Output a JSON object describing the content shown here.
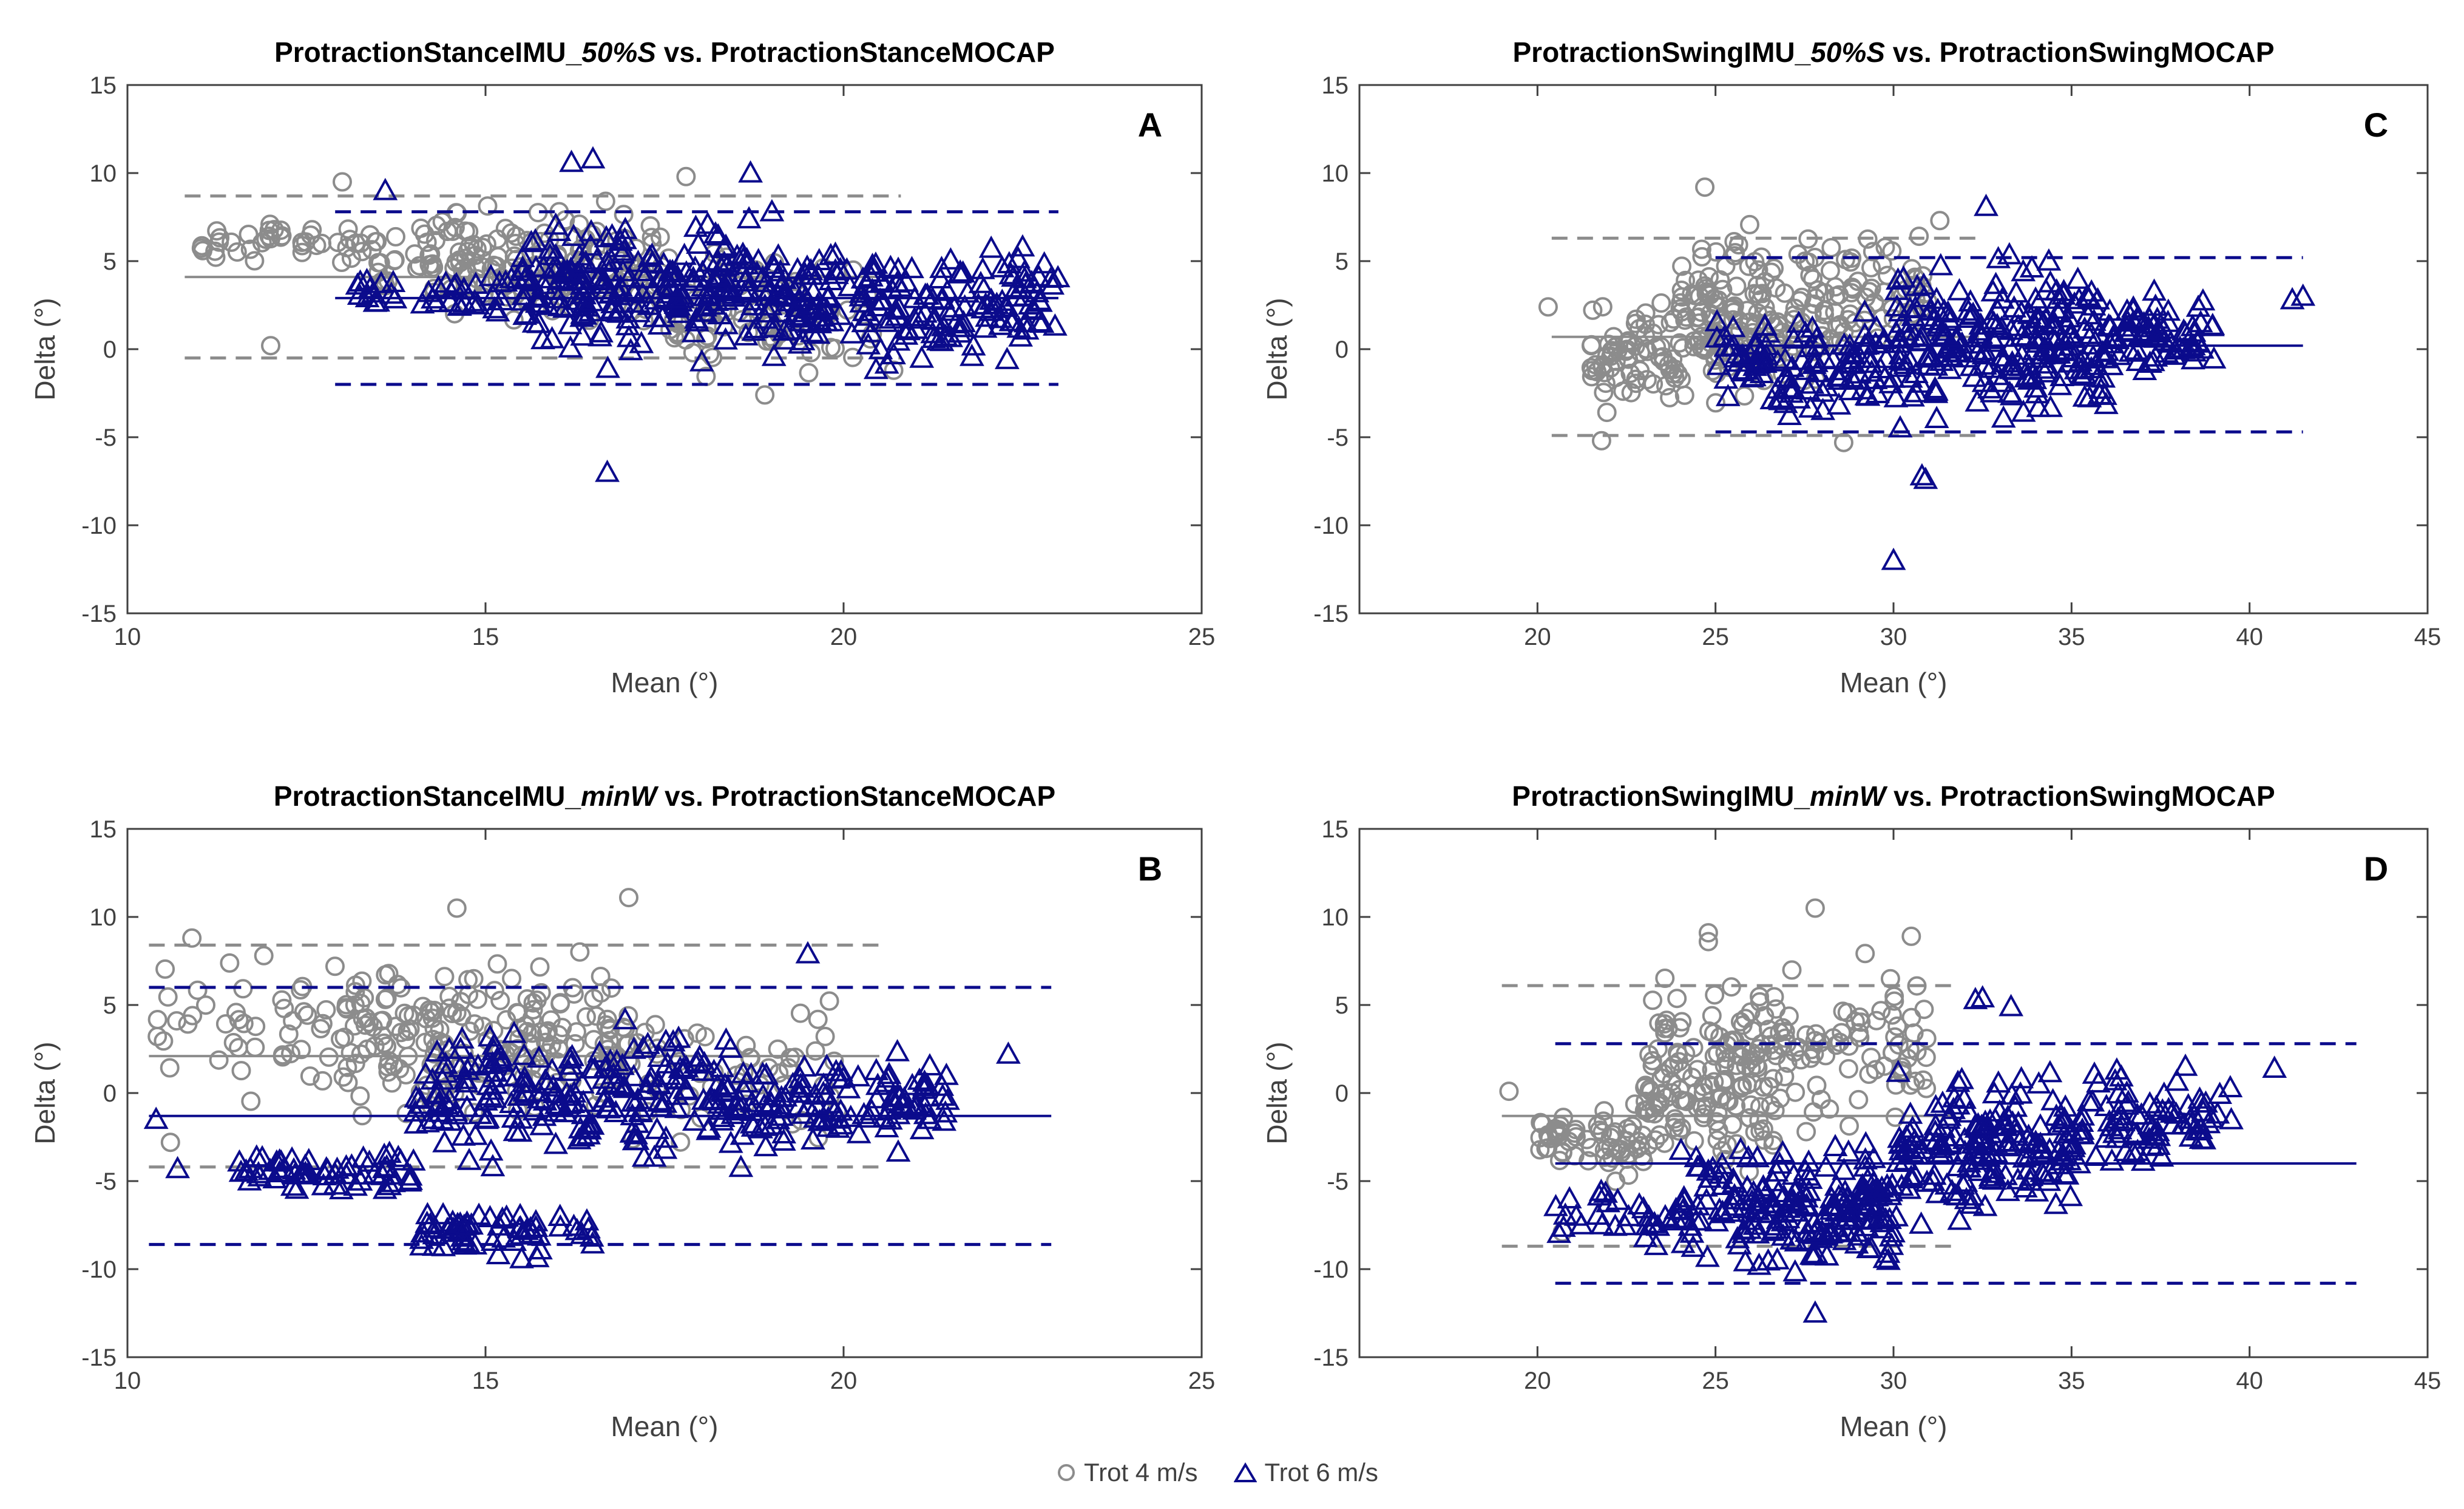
{
  "colors": {
    "trot4": "#8c8c8c",
    "trot6": "#0b0b8c",
    "axis": "#404040"
  },
  "legend": {
    "trot4_label": "Trot 4 m/s",
    "trot6_label": "Trot 6 m/s"
  },
  "chart_data": [
    {
      "type": "scatter",
      "panel": "A",
      "title_prefix": "ProtractionStanceIMU_",
      "title_italic": "50%S",
      "title_suffix": " vs. ProtractionStanceMOCAP",
      "xlabel": "Mean (°)",
      "ylabel": "Delta (°)",
      "xlim": [
        10,
        25
      ],
      "ylim": [
        -15,
        15
      ],
      "xticks": [
        10,
        15,
        20,
        25
      ],
      "yticks": [
        -15,
        -10,
        -5,
        0,
        5,
        10,
        15
      ],
      "series": [
        {
          "name": "Trot 4 m/s",
          "marker": "circle",
          "x_range": [
            10.8,
            20.8
          ],
          "mean": 4.1,
          "loa": [
            -0.5,
            8.7
          ],
          "cloud": [
            {
              "x": [
                11,
                13.5
              ],
              "y": [
                4,
                8
              ],
              "n": 45
            },
            {
              "x": [
                13.5,
                17.5
              ],
              "y": [
                0.5,
                9
              ],
              "n": 170
            },
            {
              "x": [
                17.5,
                20.5
              ],
              "y": [
                -2.5,
                7
              ],
              "n": 80
            }
          ],
          "outliers": [
            [
              12,
              0.2
            ],
            [
              13,
              9.5
            ],
            [
              17.8,
              9.8
            ],
            [
              18.9,
              -2.6
            ],
            [
              20.7,
              -1.2
            ]
          ]
        },
        {
          "name": "Trot 6 m/s",
          "marker": "triangle",
          "x_range": [
            12.9,
            23
          ],
          "mean": 2.9,
          "loa": [
            -2,
            7.8
          ],
          "cloud": [
            {
              "x": [
                13,
                15.5
              ],
              "y": [
                1.5,
                5
              ],
              "n": 40
            },
            {
              "x": [
                15.5,
                19
              ],
              "y": [
                -1.5,
                8.5
              ],
              "n": 230
            },
            {
              "x": [
                19,
                23
              ],
              "y": [
                -1.8,
                7
              ],
              "n": 200
            }
          ],
          "outliers": [
            [
              16.7,
              -7
            ],
            [
              16.2,
              10.6
            ],
            [
              16.5,
              10.8
            ],
            [
              18.7,
              10
            ],
            [
              13.6,
              9
            ],
            [
              22.5,
              5.8
            ]
          ]
        }
      ]
    },
    {
      "type": "scatter",
      "panel": "B",
      "title_prefix": "ProtractionStanceIMU_",
      "title_italic": "minW",
      "title_suffix": " vs. ProtractionStanceMOCAP",
      "xlabel": "Mean (°)",
      "ylabel": "Delta (°)",
      "xlim": [
        10,
        25
      ],
      "ylim": [
        -15,
        15
      ],
      "xticks": [
        10,
        15,
        20,
        25
      ],
      "yticks": [
        -15,
        -10,
        -5,
        0,
        5,
        10,
        15
      ],
      "series": [
        {
          "name": "Trot 4 m/s",
          "marker": "circle",
          "x_range": [
            10.3,
            20.5
          ],
          "mean": 2.1,
          "loa": [
            -4.2,
            8.4
          ],
          "cloud": [
            {
              "x": [
                10.3,
                13
              ],
              "y": [
                -1,
                9
              ],
              "n": 45
            },
            {
              "x": [
                13,
                17
              ],
              "y": [
                -3,
                9
              ],
              "n": 200
            },
            {
              "x": [
                17,
                20
              ],
              "y": [
                -4.5,
                7
              ],
              "n": 50
            }
          ],
          "outliers": [
            [
              14.6,
              10.5
            ],
            [
              17,
              11.1
            ],
            [
              10.9,
              8.8
            ],
            [
              10.6,
              -2.8
            ]
          ]
        },
        {
          "name": "Trot 6 m/s",
          "marker": "triangle",
          "x_range": [
            10.3,
            22.9
          ],
          "mean": -1.3,
          "loa": [
            -8.6,
            6
          ],
          "cloud": [
            {
              "x": [
                11.5,
                14
              ],
              "y": [
                -6,
                -3
              ],
              "n": 60
            },
            {
              "x": [
                14,
                16.5
              ],
              "y": [
                -10,
                -6
              ],
              "n": 60
            },
            {
              "x": [
                14,
                19
              ],
              "y": [
                -5,
                5
              ],
              "n": 230
            },
            {
              "x": [
                19,
                21.5
              ],
              "y": [
                -4,
                3
              ],
              "n": 90
            }
          ],
          "outliers": [
            [
              22.3,
              2.2
            ],
            [
              19.5,
              7.9
            ],
            [
              10.7,
              -4.3
            ],
            [
              10.4,
              -1.5
            ]
          ]
        }
      ]
    },
    {
      "type": "scatter",
      "panel": "C",
      "title_prefix": "ProtractionSwingIMU_",
      "title_italic": "50%S",
      "title_suffix": " vs. ProtractionSwingMOCAP",
      "xlabel": "Mean (°)",
      "ylabel": "Delta (°)",
      "xlim": [
        15,
        45
      ],
      "ylim": [
        -15,
        15
      ],
      "xticks": [
        20,
        25,
        30,
        35,
        40,
        45
      ],
      "yticks": [
        -15,
        -10,
        -5,
        0,
        5,
        10,
        15
      ],
      "series": [
        {
          "name": "Trot 4 m/s",
          "marker": "circle",
          "x_range": [
            20.4,
            32.4
          ],
          "mean": 0.7,
          "loa": [
            -4.9,
            6.3
          ],
          "cloud": [
            {
              "x": [
                21.5,
                24
              ],
              "y": [
                -4,
                3
              ],
              "n": 70
            },
            {
              "x": [
                24,
                28
              ],
              "y": [
                -4,
                8
              ],
              "n": 150
            },
            {
              "x": [
                28,
                31
              ],
              "y": [
                -1,
                7.5
              ],
              "n": 60
            }
          ],
          "outliers": [
            [
              20.3,
              2.4
            ],
            [
              24.7,
              9.2
            ],
            [
              21.8,
              -5.2
            ],
            [
              28.6,
              -5.3
            ],
            [
              31.3,
              7.3
            ]
          ]
        },
        {
          "name": "Trot 6 m/s",
          "marker": "triangle",
          "x_range": [
            25,
            41.5
          ],
          "mean": 0.2,
          "loa": [
            -4.7,
            5.2
          ],
          "cloud": [
            {
              "x": [
                25,
                30
              ],
              "y": [
                -4.5,
                2.5
              ],
              "n": 110
            },
            {
              "x": [
                30,
                36
              ],
              "y": [
                -5.5,
                6
              ],
              "n": 230
            },
            {
              "x": [
                36,
                39
              ],
              "y": [
                -2,
                4
              ],
              "n": 70
            }
          ],
          "outliers": [
            [
              30,
              -12
            ],
            [
              30.8,
              -7.2
            ],
            [
              30.9,
              -7.4
            ],
            [
              32.6,
              8.1
            ],
            [
              41.2,
              2.8
            ],
            [
              41.5,
              3
            ]
          ]
        }
      ]
    },
    {
      "type": "scatter",
      "panel": "D",
      "title_prefix": "ProtractionSwingIMU_",
      "title_italic": "minW",
      "title_suffix": " vs. ProtractionSwingMOCAP",
      "xlabel": "Mean (°)",
      "ylabel": "Delta (°)",
      "xlim": [
        15,
        45
      ],
      "ylim": [
        -15,
        15
      ],
      "xticks": [
        20,
        25,
        30,
        35,
        40,
        45
      ],
      "yticks": [
        -15,
        -10,
        -5,
        0,
        5,
        10,
        15
      ],
      "series": [
        {
          "name": "Trot 4 m/s",
          "marker": "circle",
          "x_range": [
            19,
            31.7
          ],
          "mean": -1.3,
          "loa": [
            -8.7,
            6.1
          ],
          "cloud": [
            {
              "x": [
                20,
                23
              ],
              "y": [
                -6,
                0
              ],
              "n": 60
            },
            {
              "x": [
                23,
                27
              ],
              "y": [
                -6,
                8
              ],
              "n": 160
            },
            {
              "x": [
                27,
                31
              ],
              "y": [
                -3,
                9
              ],
              "n": 70
            }
          ],
          "outliers": [
            [
              19.2,
              0.1
            ],
            [
              24.8,
              9.1
            ],
            [
              24.8,
              8.6
            ],
            [
              27.8,
              10.5
            ],
            [
              30.5,
              8.9
            ],
            [
              20.7,
              -7.9
            ]
          ]
        },
        {
          "name": "Trot 6 m/s",
          "marker": "triangle",
          "x_range": [
            20.5,
            43
          ],
          "mean": -4,
          "loa": [
            -10.8,
            2.8
          ],
          "cloud": [
            {
              "x": [
                20.5,
                24
              ],
              "y": [
                -9,
                -5
              ],
              "n": 30
            },
            {
              "x": [
                24,
                30
              ],
              "y": [
                -11,
                -2
              ],
              "n": 200
            },
            {
              "x": [
                30,
                35
              ],
              "y": [
                -8,
                2
              ],
              "n": 170
            },
            {
              "x": [
                35,
                39.5
              ],
              "y": [
                -5,
                2.5
              ],
              "n": 80
            }
          ],
          "outliers": [
            [
              27.8,
              -12.5
            ],
            [
              40.7,
              1.4
            ],
            [
              32.5,
              5.4
            ],
            [
              32.3,
              5.3
            ],
            [
              33.3,
              4.9
            ],
            [
              39.1,
              -1.2
            ]
          ]
        }
      ]
    }
  ]
}
